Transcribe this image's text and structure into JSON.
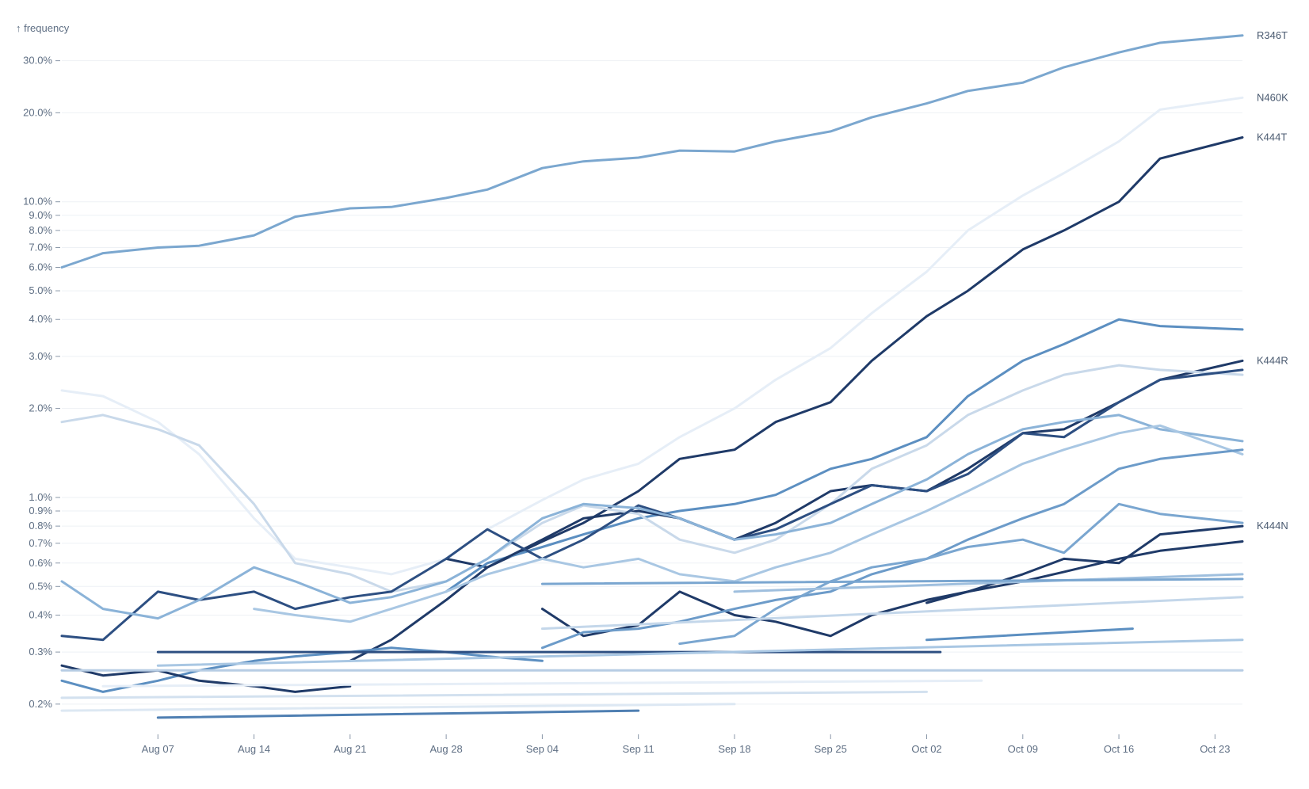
{
  "chart_data": {
    "type": "line",
    "ylabel": "↑ frequency",
    "y_scale": "log",
    "ylim": [
      0.0016,
      0.4
    ],
    "x_range": [
      "2023-07-31",
      "2023-10-25"
    ],
    "y_ticks": [
      {
        "v": 0.002,
        "label": "0.2%"
      },
      {
        "v": 0.003,
        "label": "0.3%"
      },
      {
        "v": 0.004,
        "label": "0.4%"
      },
      {
        "v": 0.005,
        "label": "0.5%"
      },
      {
        "v": 0.006,
        "label": "0.6%"
      },
      {
        "v": 0.007,
        "label": "0.7%"
      },
      {
        "v": 0.008,
        "label": "0.8%"
      },
      {
        "v": 0.009,
        "label": "0.9%"
      },
      {
        "v": 0.01,
        "label": "1.0%"
      },
      {
        "v": 0.02,
        "label": "2.0%"
      },
      {
        "v": 0.03,
        "label": "3.0%"
      },
      {
        "v": 0.04,
        "label": "4.0%"
      },
      {
        "v": 0.05,
        "label": "5.0%"
      },
      {
        "v": 0.06,
        "label": "6.0%"
      },
      {
        "v": 0.07,
        "label": "7.0%"
      },
      {
        "v": 0.08,
        "label": "8.0%"
      },
      {
        "v": 0.09,
        "label": "9.0%"
      },
      {
        "v": 0.1,
        "label": "10.0%"
      },
      {
        "v": 0.2,
        "label": "20.0%"
      },
      {
        "v": 0.3,
        "label": "30.0%"
      }
    ],
    "x_ticks": [
      {
        "date": "2023-08-07",
        "label": "Aug 07"
      },
      {
        "date": "2023-08-14",
        "label": "Aug 14"
      },
      {
        "date": "2023-08-21",
        "label": "Aug 21"
      },
      {
        "date": "2023-08-28",
        "label": "Aug 28"
      },
      {
        "date": "2023-09-04",
        "label": "Sep 04"
      },
      {
        "date": "2023-09-11",
        "label": "Sep 11"
      },
      {
        "date": "2023-09-18",
        "label": "Sep 18"
      },
      {
        "date": "2023-09-25",
        "label": "Sep 25"
      },
      {
        "date": "2023-10-02",
        "label": "Oct 02"
      },
      {
        "date": "2023-10-09",
        "label": "Oct 09"
      },
      {
        "date": "2023-10-16",
        "label": "Oct 16"
      },
      {
        "date": "2023-10-23",
        "label": "Oct 23"
      }
    ],
    "grid": true,
    "series": [
      {
        "name": "R346T",
        "color": "#7ba7cf",
        "width": 3,
        "x": [
          "2023-07-31",
          "2023-08-03",
          "2023-08-07",
          "2023-08-10",
          "2023-08-14",
          "2023-08-17",
          "2023-08-21",
          "2023-08-24",
          "2023-08-28",
          "2023-08-31",
          "2023-09-04",
          "2023-09-07",
          "2023-09-11",
          "2023-09-14",
          "2023-09-18",
          "2023-09-21",
          "2023-09-25",
          "2023-09-28",
          "2023-10-02",
          "2023-10-05",
          "2023-10-09",
          "2023-10-12",
          "2023-10-16",
          "2023-10-19",
          "2023-10-25"
        ],
        "y": [
          0.06,
          0.067,
          0.07,
          0.071,
          0.077,
          0.089,
          0.095,
          0.096,
          0.103,
          0.11,
          0.13,
          0.137,
          0.141,
          0.149,
          0.148,
          0.16,
          0.173,
          0.193,
          0.215,
          0.237,
          0.253,
          0.285,
          0.32,
          0.345,
          0.365
        ]
      },
      {
        "name": "N460K",
        "color": "#e6eef7",
        "width": 3,
        "x": [
          "2023-07-31",
          "2023-08-03",
          "2023-08-07",
          "2023-08-10",
          "2023-08-14",
          "2023-08-17",
          "2023-08-21",
          "2023-08-24",
          "2023-08-28",
          "2023-08-31",
          "2023-09-04",
          "2023-09-07",
          "2023-09-11",
          "2023-09-14",
          "2023-09-18",
          "2023-09-21",
          "2023-09-25",
          "2023-09-28",
          "2023-10-02",
          "2023-10-05",
          "2023-10-09",
          "2023-10-12",
          "2023-10-16",
          "2023-10-19",
          "2023-10-25"
        ],
        "y": [
          0.023,
          0.022,
          0.018,
          0.014,
          0.0085,
          0.0062,
          0.0058,
          0.0055,
          0.0062,
          0.0078,
          0.0098,
          0.0115,
          0.013,
          0.016,
          0.02,
          0.025,
          0.032,
          0.042,
          0.058,
          0.08,
          0.105,
          0.125,
          0.16,
          0.205,
          0.225
        ]
      },
      {
        "name": "K444T",
        "color": "#1f3a68",
        "width": 3,
        "x": [
          "2023-08-28",
          "2023-08-31",
          "2023-09-04",
          "2023-09-07",
          "2023-09-11",
          "2023-09-14",
          "2023-09-18",
          "2023-09-21",
          "2023-09-25",
          "2023-09-28",
          "2023-10-02",
          "2023-10-05",
          "2023-10-09",
          "2023-10-12",
          "2023-10-16",
          "2023-10-19",
          "2023-10-25"
        ],
        "y": [
          0.0062,
          0.0058,
          0.0071,
          0.0082,
          0.0105,
          0.0135,
          0.0145,
          0.018,
          0.021,
          0.029,
          0.041,
          0.05,
          0.069,
          0.08,
          0.1,
          0.14,
          0.165
        ]
      },
      {
        "name": "",
        "color": "#5c8fc1",
        "width": 3,
        "x": [
          "2023-08-28",
          "2023-08-31",
          "2023-09-04",
          "2023-09-07",
          "2023-09-11",
          "2023-09-14",
          "2023-09-18",
          "2023-09-21",
          "2023-09-25",
          "2023-09-28",
          "2023-10-02",
          "2023-10-05",
          "2023-10-09",
          "2023-10-12",
          "2023-10-16",
          "2023-10-19",
          "2023-10-25"
        ],
        "y": [
          0.0048,
          0.006,
          0.0068,
          0.0075,
          0.0085,
          0.009,
          0.0095,
          0.0102,
          0.0125,
          0.0135,
          0.016,
          0.022,
          0.029,
          0.033,
          0.04,
          0.038,
          0.037
        ]
      },
      {
        "name": "K444R",
        "color": "#1f3a68",
        "width": 3,
        "x": [
          "2023-08-21",
          "2023-08-24",
          "2023-08-28",
          "2023-08-31",
          "2023-09-04",
          "2023-09-07",
          "2023-09-11",
          "2023-09-14",
          "2023-09-18",
          "2023-09-21",
          "2023-09-25",
          "2023-09-28",
          "2023-10-02",
          "2023-10-05",
          "2023-10-09",
          "2023-10-12",
          "2023-10-16",
          "2023-10-19",
          "2023-10-25"
        ],
        "y": [
          0.0028,
          0.0033,
          0.0045,
          0.0058,
          0.0072,
          0.0085,
          0.009,
          0.0085,
          0.0072,
          0.0082,
          0.0105,
          0.011,
          0.0105,
          0.0125,
          0.0165,
          0.017,
          0.021,
          0.025,
          0.029
        ]
      },
      {
        "name": "K444N",
        "color": "#1f3a68",
        "width": 3,
        "x": [
          "2023-09-04",
          "2023-09-07",
          "2023-09-11",
          "2023-09-14",
          "2023-09-18",
          "2023-09-21",
          "2023-09-25",
          "2023-09-28",
          "2023-10-02",
          "2023-10-05",
          "2023-10-09",
          "2023-10-12",
          "2023-10-16",
          "2023-10-19",
          "2023-10-25"
        ],
        "y": [
          0.0042,
          0.0034,
          0.0037,
          0.0048,
          0.004,
          0.0038,
          0.0034,
          0.004,
          0.0045,
          0.0048,
          0.0055,
          0.0062,
          0.006,
          0.0075,
          0.008
        ]
      },
      {
        "name": "",
        "color": "#c9d9ea",
        "width": 3,
        "x": [
          "2023-07-31",
          "2023-08-03",
          "2023-08-07",
          "2023-08-10",
          "2023-08-14",
          "2023-08-17",
          "2023-08-21",
          "2023-08-24",
          "2023-08-28",
          "2023-08-31",
          "2023-09-04",
          "2023-09-07",
          "2023-09-11",
          "2023-09-14",
          "2023-09-18",
          "2023-09-21",
          "2023-09-25",
          "2023-09-28",
          "2023-10-02",
          "2023-10-05",
          "2023-10-09",
          "2023-10-12",
          "2023-10-16",
          "2023-10-19",
          "2023-10-25"
        ],
        "y": [
          0.018,
          0.019,
          0.017,
          0.015,
          0.0095,
          0.006,
          0.0055,
          0.0048,
          0.0052,
          0.0062,
          0.0082,
          0.0094,
          0.0088,
          0.0072,
          0.0065,
          0.0072,
          0.0095,
          0.0125,
          0.015,
          0.019,
          0.023,
          0.026,
          0.028,
          0.027,
          0.026
        ]
      },
      {
        "name": "",
        "color": "#2d4f82",
        "width": 3,
        "x": [
          "2023-07-31",
          "2023-08-03",
          "2023-08-07",
          "2023-08-10",
          "2023-08-14",
          "2023-08-17",
          "2023-08-21",
          "2023-08-24",
          "2023-08-28",
          "2023-08-31",
          "2023-09-04",
          "2023-09-07",
          "2023-09-11",
          "2023-09-14",
          "2023-09-18",
          "2023-09-21",
          "2023-09-25",
          "2023-09-28",
          "2023-10-02",
          "2023-10-05",
          "2023-10-09",
          "2023-10-12",
          "2023-10-16",
          "2023-10-19",
          "2023-10-25"
        ],
        "y": [
          0.0034,
          0.0033,
          0.0048,
          0.0045,
          0.0048,
          0.0042,
          0.0046,
          0.0048,
          0.0062,
          0.0078,
          0.0062,
          0.0072,
          0.0094,
          0.0085,
          0.0072,
          0.0078,
          0.0095,
          0.011,
          0.0105,
          0.012,
          0.0165,
          0.016,
          0.021,
          0.025,
          0.027
        ]
      },
      {
        "name": "",
        "color": "#8bb3d8",
        "width": 3,
        "x": [
          "2023-07-31",
          "2023-08-03",
          "2023-08-07",
          "2023-08-10",
          "2023-08-14",
          "2023-08-17",
          "2023-08-21",
          "2023-08-24",
          "2023-08-28",
          "2023-08-31",
          "2023-09-04",
          "2023-09-07",
          "2023-09-11",
          "2023-09-14",
          "2023-09-18",
          "2023-09-21",
          "2023-09-25",
          "2023-09-28",
          "2023-10-02",
          "2023-10-05",
          "2023-10-09",
          "2023-10-12",
          "2023-10-16",
          "2023-10-19",
          "2023-10-25"
        ],
        "y": [
          0.0052,
          0.0042,
          0.0039,
          0.0045,
          0.0058,
          0.0052,
          0.0044,
          0.0046,
          0.0052,
          0.0062,
          0.0085,
          0.0095,
          0.0092,
          0.0085,
          0.0072,
          0.0075,
          0.0082,
          0.0095,
          0.0115,
          0.014,
          0.017,
          0.018,
          0.019,
          0.017,
          0.0155
        ]
      },
      {
        "name": "",
        "color": "#a9c7e3",
        "width": 3,
        "x": [
          "2023-08-14",
          "2023-08-17",
          "2023-08-21",
          "2023-08-24",
          "2023-08-28",
          "2023-08-31",
          "2023-09-04",
          "2023-09-07",
          "2023-09-11",
          "2023-09-14",
          "2023-09-18",
          "2023-09-21",
          "2023-09-25",
          "2023-09-28",
          "2023-10-02",
          "2023-10-05",
          "2023-10-09",
          "2023-10-12",
          "2023-10-16",
          "2023-10-19",
          "2023-10-25"
        ],
        "y": [
          0.0042,
          0.004,
          0.0038,
          0.0042,
          0.0048,
          0.0055,
          0.0062,
          0.0058,
          0.0062,
          0.0055,
          0.0052,
          0.0058,
          0.0065,
          0.0075,
          0.009,
          0.0105,
          0.013,
          0.0145,
          0.0165,
          0.0175,
          0.014
        ]
      },
      {
        "name": "",
        "color": "#6c9bc9",
        "width": 3,
        "x": [
          "2023-09-04",
          "2023-09-07",
          "2023-09-11",
          "2023-09-14",
          "2023-09-18",
          "2023-09-21",
          "2023-09-25",
          "2023-09-28",
          "2023-10-02",
          "2023-10-05",
          "2023-10-09",
          "2023-10-12",
          "2023-10-16",
          "2023-10-19",
          "2023-10-25"
        ],
        "y": [
          0.0031,
          0.0035,
          0.0036,
          0.0038,
          0.0042,
          0.0045,
          0.0048,
          0.0055,
          0.0062,
          0.0072,
          0.0085,
          0.0095,
          0.0125,
          0.0135,
          0.0145
        ]
      },
      {
        "name": "",
        "color": "#7aa6d0",
        "width": 3,
        "x": [
          "2023-09-14",
          "2023-09-18",
          "2023-09-21",
          "2023-09-25",
          "2023-09-28",
          "2023-10-02",
          "2023-10-05",
          "2023-10-09",
          "2023-10-12",
          "2023-10-16",
          "2023-10-19",
          "2023-10-25"
        ],
        "y": [
          0.0032,
          0.0034,
          0.0042,
          0.0052,
          0.0058,
          0.0062,
          0.0068,
          0.0072,
          0.0065,
          0.0095,
          0.0088,
          0.0082
        ]
      },
      {
        "name": "",
        "color": "#1f3a68",
        "width": 3,
        "x": [
          "2023-10-02",
          "2023-10-05",
          "2023-10-09",
          "2023-10-12",
          "2023-10-16",
          "2023-10-19",
          "2023-10-25"
        ],
        "y": [
          0.0044,
          0.0048,
          0.0052,
          0.0056,
          0.0062,
          0.0066,
          0.0071
        ]
      },
      {
        "name": "",
        "color": "#5c8fc1",
        "width": 3,
        "x": [
          "2023-07-31",
          "2023-08-03",
          "2023-08-07",
          "2023-08-10",
          "2023-08-14",
          "2023-08-17",
          "2023-08-21",
          "2023-08-24",
          "2023-08-28",
          "2023-08-31",
          "2023-09-04"
        ],
        "y": [
          0.0024,
          0.0022,
          0.0024,
          0.0026,
          0.0028,
          0.0029,
          0.003,
          0.0031,
          0.003,
          0.0029,
          0.0028
        ]
      },
      {
        "name": "",
        "color": "#1f3a68",
        "width": 3,
        "x": [
          "2023-07-31",
          "2023-08-03",
          "2023-08-07",
          "2023-08-10",
          "2023-08-14",
          "2023-08-17",
          "2023-08-21"
        ],
        "y": [
          0.0027,
          0.0025,
          0.0026,
          0.0024,
          0.0023,
          0.0022,
          0.0023
        ]
      },
      {
        "name": "",
        "color": "#2d4f82",
        "width": 3,
        "x": [
          "2023-08-07",
          "2023-10-03"
        ],
        "y": [
          0.003,
          0.003
        ]
      },
      {
        "name": "",
        "color": "#9fbfde",
        "width": 3,
        "x": [
          "2023-09-18",
          "2023-10-25"
        ],
        "y": [
          0.0048,
          0.0055
        ]
      },
      {
        "name": "",
        "color": "#c4d7ea",
        "width": 3,
        "x": [
          "2023-09-04",
          "2023-10-25"
        ],
        "y": [
          0.0036,
          0.0046
        ]
      },
      {
        "name": "",
        "color": "#5c8fc1",
        "width": 3,
        "x": [
          "2023-10-02",
          "2023-10-17"
        ],
        "y": [
          0.0033,
          0.0036
        ]
      },
      {
        "name": "",
        "color": "#a9c7e3",
        "width": 3,
        "x": [
          "2023-08-07",
          "2023-10-25"
        ],
        "y": [
          0.0027,
          0.0033
        ]
      },
      {
        "name": "",
        "color": "#b7cde4",
        "width": 3,
        "x": [
          "2023-07-31",
          "2023-10-25"
        ],
        "y": [
          0.0026,
          0.0026
        ]
      },
      {
        "name": "",
        "color": "#d3e1ef",
        "width": 3,
        "x": [
          "2023-07-31",
          "2023-10-02"
        ],
        "y": [
          0.0021,
          0.0022
        ]
      },
      {
        "name": "",
        "color": "#4f7fb2",
        "width": 3,
        "x": [
          "2023-08-07",
          "2023-09-11"
        ],
        "y": [
          0.0018,
          0.0019
        ]
      },
      {
        "name": "",
        "color": "#dde8f3",
        "width": 3,
        "x": [
          "2023-07-31",
          "2023-09-18"
        ],
        "y": [
          0.0019,
          0.002
        ]
      },
      {
        "name": "",
        "color": "#e6eef7",
        "width": 3,
        "x": [
          "2023-08-03",
          "2023-10-06"
        ],
        "y": [
          0.0023,
          0.0024
        ]
      },
      {
        "name": "",
        "color": "#7aa6d0",
        "width": 3,
        "x": [
          "2023-09-04",
          "2023-10-25"
        ],
        "y": [
          0.0051,
          0.0053
        ]
      }
    ]
  }
}
